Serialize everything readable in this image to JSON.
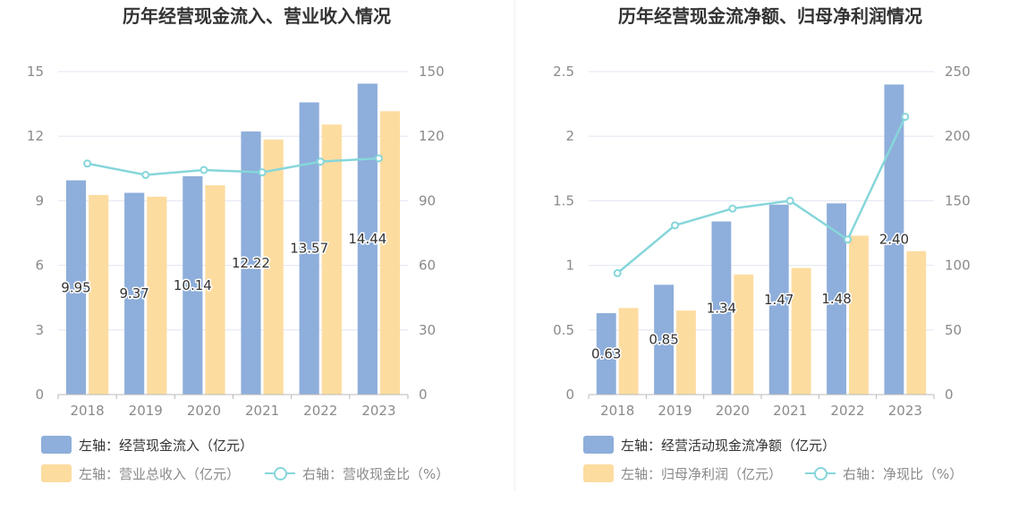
{
  "colors": {
    "bar_primary": "#8eaedb",
    "bar_secondary": "#fddca0",
    "line": "#86d6da",
    "grid": "#e2e6f0",
    "axis": "#b9b9b9"
  },
  "left": {
    "title": "历年经营现金流入、营业收入情况",
    "legend": {
      "series1": "左轴：经营现金流入（亿元）",
      "series2": "左轴：营业总收入（亿元）",
      "series3": "右轴：营收现金比（%）"
    }
  },
  "right": {
    "title": "历年经营现金流净额、归母净利润情况",
    "legend": {
      "series1": "左轴：经营活动现金流净额（亿元）",
      "series2": "左轴：归母净利润（亿元）",
      "series3": "右轴：净现比（%）"
    }
  },
  "chart_data": [
    {
      "type": "bar",
      "title": "历年经营现金流入、营业收入情况",
      "categories": [
        "2018",
        "2019",
        "2020",
        "2021",
        "2022",
        "2023"
      ],
      "y_left": {
        "range": [
          0,
          15
        ],
        "ticks": [
          "0",
          "3",
          "6",
          "9",
          "12",
          "15"
        ]
      },
      "y_right": {
        "range": [
          0,
          150
        ],
        "ticks": [
          "0",
          "30",
          "60",
          "90",
          "120",
          "150"
        ]
      },
      "grid": true,
      "series": [
        {
          "name": "左轴：经营现金流入（亿元）",
          "type": "bar",
          "axis": "left",
          "values": [
            9.95,
            9.37,
            10.14,
            12.22,
            13.57,
            14.44
          ],
          "labels": [
            "9.95",
            "9.37",
            "10.14",
            "12.22",
            "13.57",
            "14.44"
          ]
        },
        {
          "name": "左轴：营业总收入（亿元）",
          "type": "bar",
          "axis": "left",
          "values": [
            9.27,
            9.19,
            9.72,
            11.84,
            12.54,
            13.16
          ]
        },
        {
          "name": "右轴：营收现金比（%）",
          "type": "line",
          "axis": "right",
          "values": [
            107.3,
            102.0,
            104.3,
            103.2,
            108.2,
            109.7
          ]
        }
      ]
    },
    {
      "type": "bar",
      "title": "历年经营现金流净额、归母净利润情况",
      "categories": [
        "2018",
        "2019",
        "2020",
        "2021",
        "2022",
        "2023"
      ],
      "y_left": {
        "range": [
          0,
          2.5
        ],
        "ticks": [
          "0",
          "0.5",
          "1",
          "1.5",
          "2",
          "2.5"
        ]
      },
      "y_right": {
        "range": [
          0,
          250
        ],
        "ticks": [
          "0",
          "50",
          "100",
          "150",
          "200",
          "250"
        ]
      },
      "grid": true,
      "series": [
        {
          "name": "左轴：经营活动现金流净额（亿元）",
          "type": "bar",
          "axis": "left",
          "values": [
            0.63,
            0.85,
            1.34,
            1.47,
            1.48,
            2.4
          ],
          "labels": [
            "0.63",
            "0.85",
            "1.34",
            "1.47",
            "1.48",
            "2.40"
          ]
        },
        {
          "name": "左轴：归母净利润（亿元）",
          "type": "bar",
          "axis": "left",
          "values": [
            0.67,
            0.65,
            0.93,
            0.98,
            1.23,
            1.11
          ]
        },
        {
          "name": "右轴：净现比（%）",
          "type": "line",
          "axis": "right",
          "values": [
            94,
            131,
            144,
            150,
            120,
            215
          ]
        }
      ]
    }
  ]
}
